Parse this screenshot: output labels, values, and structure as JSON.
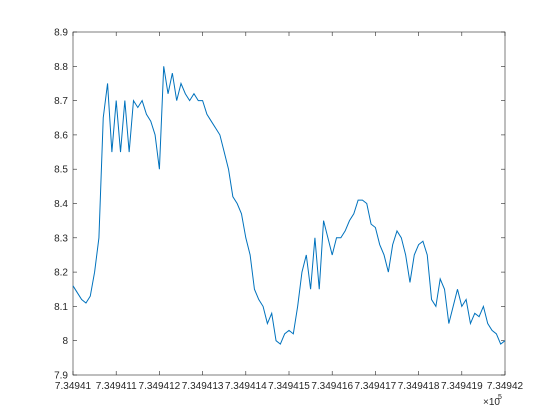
{
  "chart_data": {
    "type": "line",
    "x": [
      734941,
      734941.01,
      734941.02,
      734941.03,
      734941.04,
      734941.05,
      734941.06,
      734941.07,
      734941.08,
      734941.09,
      734941.1,
      734941.11,
      734941.12,
      734941.13,
      734941.14,
      734941.15,
      734941.16,
      734941.17,
      734941.18,
      734941.19,
      734941.2,
      734941.21,
      734941.22,
      734941.23,
      734941.24,
      734941.25,
      734941.26,
      734941.27,
      734941.28,
      734941.29,
      734941.3,
      734941.31,
      734941.32,
      734941.33,
      734941.34,
      734941.35,
      734941.36,
      734941.37,
      734941.38,
      734941.39,
      734941.4,
      734941.41,
      734941.42,
      734941.43,
      734941.44,
      734941.45,
      734941.46,
      734941.47,
      734941.48,
      734941.49,
      734941.5,
      734941.51,
      734941.52,
      734941.53,
      734941.54,
      734941.55,
      734941.56,
      734941.57,
      734941.58,
      734941.59,
      734941.6,
      734941.61,
      734941.62,
      734941.63,
      734941.64,
      734941.65,
      734941.66,
      734941.67,
      734941.68,
      734941.69,
      734941.7,
      734941.71,
      734941.72,
      734941.73,
      734941.74,
      734941.75,
      734941.76,
      734941.77,
      734941.78,
      734941.79,
      734941.8,
      734941.81,
      734941.82,
      734941.83,
      734941.84,
      734941.85,
      734941.86,
      734941.87,
      734941.88,
      734941.89,
      734941.9,
      734941.91,
      734941.92,
      734941.93,
      734941.94,
      734941.95,
      734941.96,
      734941.97,
      734941.98,
      734941.99,
      734942
    ],
    "series": [
      {
        "color": "#0072bd",
        "values": [
          8.16,
          8.14,
          8.12,
          8.11,
          8.13,
          8.2,
          8.3,
          8.65,
          8.75,
          8.55,
          8.7,
          8.55,
          8.7,
          8.55,
          8.7,
          8.68,
          8.7,
          8.66,
          8.64,
          8.6,
          8.5,
          8.8,
          8.72,
          8.78,
          8.7,
          8.75,
          8.72,
          8.7,
          8.72,
          8.7,
          8.7,
          8.66,
          8.64,
          8.62,
          8.6,
          8.55,
          8.5,
          8.42,
          8.4,
          8.37,
          8.3,
          8.25,
          8.15,
          8.12,
          8.1,
          8.05,
          8.08,
          8,
          7.99,
          8.02,
          8.03,
          8.02,
          8.1,
          8.2,
          8.25,
          8.15,
          8.3,
          8.15,
          8.35,
          8.3,
          8.25,
          8.3,
          8.3,
          8.32,
          8.35,
          8.37,
          8.41,
          8.41,
          8.4,
          8.34,
          8.33,
          8.28,
          8.25,
          8.2,
          8.28,
          8.32,
          8.3,
          8.25,
          8.17,
          8.25,
          8.28,
          8.29,
          8.25,
          8.12,
          8.1,
          8.18,
          8.15,
          8.05,
          8.1,
          8.15,
          8.1,
          8.12,
          8.05,
          8.08,
          8.07,
          8.1,
          8.05,
          8.03,
          8.02,
          7.99,
          8
        ]
      }
    ],
    "xlim": [
      734941,
      734942
    ],
    "xticks": [
      {
        "value": 734941,
        "label": "7.34941"
      },
      {
        "value": 734941.1,
        "label": "7.349411"
      },
      {
        "value": 734941.2,
        "label": "7.349412"
      },
      {
        "value": 734941.3,
        "label": "7.349413"
      },
      {
        "value": 734941.4,
        "label": "7.349414"
      },
      {
        "value": 734941.5,
        "label": "7.349415"
      },
      {
        "value": 734941.6,
        "label": "7.349416"
      },
      {
        "value": 734941.7,
        "label": "7.349417"
      },
      {
        "value": 734941.8,
        "label": "7.349418"
      },
      {
        "value": 734941.9,
        "label": "7.349419"
      },
      {
        "value": 734942,
        "label": "7.34942"
      }
    ],
    "x_multiplier": "×10",
    "x_multiplier_exponent": "5",
    "ylim": [
      7.9,
      8.9
    ],
    "yticks": [
      7.9,
      8,
      8.1,
      8.2,
      8.3,
      8.4,
      8.5,
      8.6,
      8.7,
      8.8,
      8.9
    ],
    "grid": false
  }
}
